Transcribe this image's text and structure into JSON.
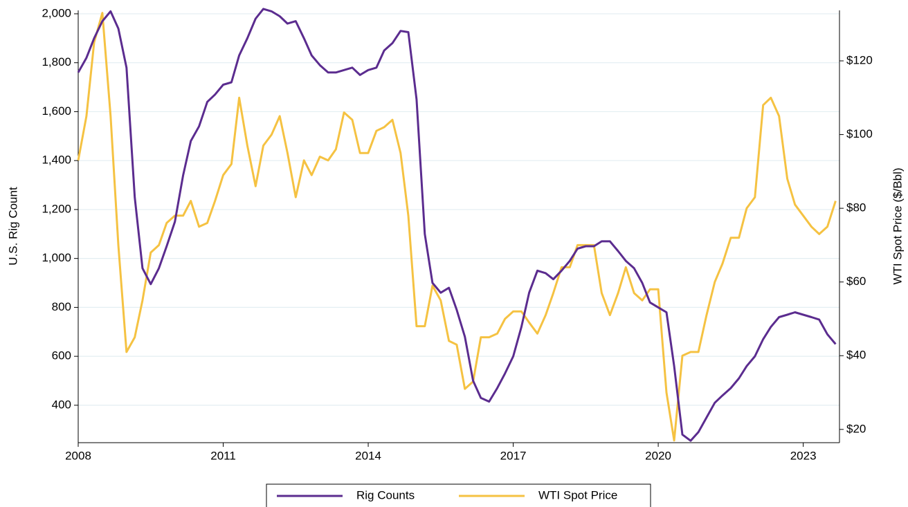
{
  "chart_data": {
    "type": "line",
    "y_label": "U.S. Rig Count",
    "y2_label": "WTI Spot Price ($/Bbl)",
    "x": [
      2008,
      2008.17,
      2008.33,
      2008.5,
      2008.67,
      2008.83,
      2009,
      2009.17,
      2009.33,
      2009.5,
      2009.67,
      2009.83,
      2010,
      2010.17,
      2010.33,
      2010.5,
      2010.67,
      2010.83,
      2011,
      2011.17,
      2011.33,
      2011.5,
      2011.67,
      2011.83,
      2012,
      2012.17,
      2012.33,
      2012.5,
      2012.67,
      2012.83,
      2013,
      2013.17,
      2013.33,
      2013.5,
      2013.67,
      2013.83,
      2014,
      2014.17,
      2014.33,
      2014.5,
      2014.67,
      2014.83,
      2015,
      2015.17,
      2015.33,
      2015.5,
      2015.67,
      2015.83,
      2016,
      2016.17,
      2016.33,
      2016.5,
      2016.67,
      2016.83,
      2017,
      2017.17,
      2017.33,
      2017.5,
      2017.67,
      2017.83,
      2018,
      2018.17,
      2018.33,
      2018.5,
      2018.67,
      2018.83,
      2019,
      2019.17,
      2019.33,
      2019.5,
      2019.67,
      2019.83,
      2020,
      2020.17,
      2020.33,
      2020.5,
      2020.67,
      2020.83,
      2021,
      2021.17,
      2021.33,
      2021.5,
      2021.67,
      2021.83,
      2022,
      2022.17,
      2022.33,
      2022.5,
      2022.67,
      2022.83,
      2023,
      2023.17,
      2023.33,
      2023.5,
      2023.67
    ],
    "series": [
      {
        "name": "Rig Counts",
        "color": "#5b2c8f",
        "axis": "y",
        "values": [
          1760,
          1820,
          1900,
          1970,
          2010,
          1940,
          1780,
          1250,
          960,
          895,
          960,
          1050,
          1150,
          1340,
          1480,
          1540,
          1640,
          1670,
          1710,
          1720,
          1830,
          1900,
          1980,
          2020,
          2010,
          1990,
          1960,
          1970,
          1900,
          1830,
          1790,
          1760,
          1760,
          1770,
          1780,
          1750,
          1770,
          1780,
          1850,
          1880,
          1930,
          1925,
          1650,
          1100,
          900,
          860,
          880,
          790,
          680,
          500,
          430,
          415,
          470,
          530,
          600,
          720,
          860,
          950,
          940,
          915,
          950,
          990,
          1040,
          1050,
          1050,
          1070,
          1070,
          1030,
          990,
          960,
          900,
          820,
          800,
          780,
          560,
          280,
          255,
          290,
          350,
          410,
          440,
          470,
          510,
          560,
          600,
          670,
          720,
          760,
          770,
          780,
          770,
          760,
          750,
          690,
          650
        ]
      },
      {
        "name": "WTI Spot Price",
        "color": "#f5c242",
        "axis": "y2",
        "values": [
          93,
          105,
          125,
          133,
          105,
          70,
          41,
          45,
          55,
          68,
          70,
          76,
          78,
          78,
          82,
          75,
          76,
          82,
          89,
          92,
          110,
          97,
          86,
          97,
          100,
          105,
          95,
          83,
          93,
          89,
          94,
          93,
          96,
          106,
          104,
          95,
          95,
          101,
          102,
          104,
          95,
          78,
          48,
          48,
          59,
          55,
          44,
          43,
          31,
          33,
          45,
          45,
          46,
          50,
          52,
          52,
          49,
          46,
          51,
          57,
          64,
          64,
          70,
          70,
          70,
          57,
          51,
          57,
          64,
          57,
          55,
          58,
          58,
          30,
          17,
          40,
          41,
          41,
          51,
          60,
          65,
          72,
          72,
          80,
          83,
          108,
          110,
          105,
          88,
          81,
          78,
          75,
          73,
          75,
          82
        ]
      }
    ],
    "xlim": [
      2008,
      2023.75
    ],
    "xticks": [
      2008,
      2011,
      2014,
      2017,
      2020,
      2023
    ],
    "ylim": [
      247,
      2014
    ],
    "yticks": [
      {
        "value": 400,
        "label": "400"
      },
      {
        "value": 600,
        "label": "600"
      },
      {
        "value": 800,
        "label": "800"
      },
      {
        "value": 1000,
        "label": "1,000"
      },
      {
        "value": 1200,
        "label": "1,200"
      },
      {
        "value": 1400,
        "label": "1,400"
      },
      {
        "value": 1600,
        "label": "1,600"
      },
      {
        "value": 1800,
        "label": "1,800"
      },
      {
        "value": 2000,
        "label": "2,000"
      }
    ],
    "y2lim": [
      16.4,
      133.7
    ],
    "y2ticks": [
      {
        "value": 20,
        "label": "$20"
      },
      {
        "value": 40,
        "label": "$40"
      },
      {
        "value": 60,
        "label": "$60"
      },
      {
        "value": 80,
        "label": "$80"
      },
      {
        "value": 100,
        "label": "$100"
      },
      {
        "value": 120,
        "label": "$120"
      }
    ],
    "grid": true,
    "legend": "bottom"
  }
}
